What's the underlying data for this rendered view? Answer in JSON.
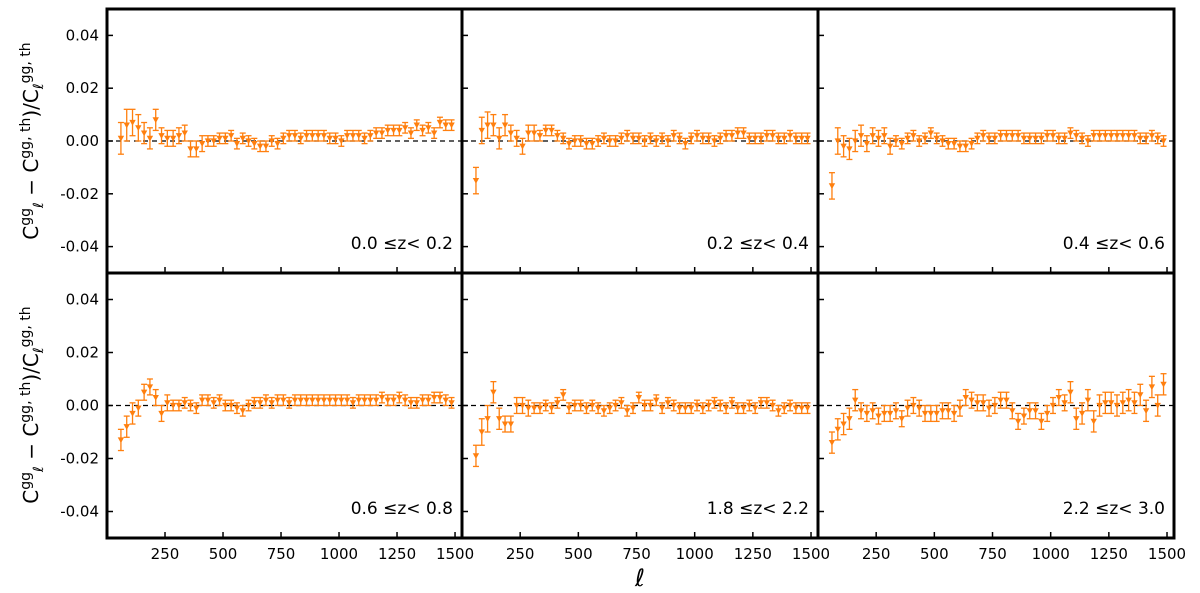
{
  "chart_data": {
    "type": "scatter",
    "layout": "2x3 grid, shared axes",
    "xlabel": "ℓ",
    "ylabel": {
      "part1": "C",
      "sup1": "gg",
      "sub": "ℓ",
      "minus": " − C",
      "sup2": "gg, th",
      "close": ")/C",
      "sub2": "ℓ",
      "sup3": "gg, th"
    },
    "xlim": [
      0,
      1530
    ],
    "ylim": [
      -0.05,
      0.05
    ],
    "x_ticks": [
      250,
      500,
      750,
      1000,
      1250,
      1500
    ],
    "x_tick_labels": [
      "250",
      "500",
      "750",
      "1000",
      "1250",
      "1500"
    ],
    "y_ticks": [
      -0.04,
      -0.02,
      0.0,
      0.02,
      0.04
    ],
    "y_tick_labels": [
      "-0.04",
      "-0.02",
      "0.00",
      "0.02",
      "0.04"
    ],
    "reference_line": {
      "y": 0,
      "style": "dashed",
      "color": "#000000"
    },
    "marker": {
      "shape": "triangle-down",
      "color": "#ff7f0e"
    },
    "x": [
      60,
      85,
      110,
      135,
      160,
      185,
      210,
      235,
      260,
      285,
      310,
      335,
      360,
      385,
      410,
      435,
      460,
      485,
      510,
      535,
      560,
      585,
      610,
      635,
      660,
      685,
      710,
      735,
      760,
      785,
      810,
      835,
      860,
      885,
      910,
      935,
      960,
      985,
      1010,
      1035,
      1060,
      1085,
      1110,
      1135,
      1160,
      1185,
      1210,
      1235,
      1260,
      1285,
      1310,
      1335,
      1360,
      1385,
      1410,
      1435,
      1460,
      1485
    ],
    "panels": [
      {
        "label": "0.0  ≤z<  0.2",
        "y": [
          0.001,
          0.006,
          0.007,
          0.005,
          0.003,
          0.001,
          0.008,
          0.002,
          0.001,
          0.001,
          0.002,
          0.003,
          -0.003,
          -0.003,
          -0.001,
          0.0,
          0.0,
          0.001,
          0.001,
          0.002,
          -0.001,
          0.001,
          0.0,
          -0.001,
          -0.002,
          -0.002,
          0.0,
          -0.001,
          0.001,
          0.002,
          0.002,
          0.001,
          0.002,
          0.002,
          0.002,
          0.002,
          0.001,
          0.001,
          0.0,
          0.002,
          0.002,
          0.002,
          0.001,
          0.002,
          0.003,
          0.003,
          0.004,
          0.004,
          0.004,
          0.005,
          0.003,
          0.006,
          0.004,
          0.005,
          0.003,
          0.007,
          0.006,
          0.006
        ],
        "err": [
          0.006,
          0.006,
          0.005,
          0.005,
          0.004,
          0.004,
          0.004,
          0.003,
          0.003,
          0.003,
          0.003,
          0.003,
          0.003,
          0.003,
          0.003,
          0.002,
          0.002,
          0.002,
          0.002,
          0.002,
          0.002,
          0.002,
          0.002,
          0.002,
          0.002,
          0.002,
          0.002,
          0.002,
          0.002,
          0.002,
          0.002,
          0.002,
          0.002,
          0.002,
          0.002,
          0.002,
          0.002,
          0.002,
          0.002,
          0.002,
          0.002,
          0.002,
          0.002,
          0.002,
          0.002,
          0.002,
          0.002,
          0.002,
          0.002,
          0.002,
          0.002,
          0.002,
          0.002,
          0.002,
          0.002,
          0.002,
          0.002,
          0.002
        ]
      },
      {
        "label": "0.2  ≤z<  0.4",
        "y": [
          -0.015,
          0.004,
          0.006,
          0.006,
          0.001,
          0.006,
          0.003,
          0.001,
          -0.002,
          0.003,
          0.003,
          0.002,
          0.004,
          0.004,
          0.002,
          0.001,
          -0.001,
          0.0,
          0.0,
          -0.001,
          -0.001,
          0.0,
          0.001,
          0.0,
          0.0,
          0.001,
          0.002,
          0.001,
          0.001,
          0.0,
          0.001,
          0.0,
          0.001,
          0.0,
          0.002,
          0.001,
          -0.001,
          0.001,
          0.002,
          0.001,
          0.001,
          0.0,
          0.001,
          0.002,
          0.002,
          0.003,
          0.003,
          0.001,
          0.001,
          0.001,
          0.002,
          0.002,
          0.001,
          0.001,
          0.002,
          0.001,
          0.001,
          0.001
        ],
        "err": [
          0.005,
          0.005,
          0.005,
          0.004,
          0.004,
          0.004,
          0.003,
          0.003,
          0.003,
          0.003,
          0.003,
          0.002,
          0.002,
          0.002,
          0.002,
          0.002,
          0.002,
          0.002,
          0.002,
          0.002,
          0.002,
          0.002,
          0.002,
          0.002,
          0.002,
          0.002,
          0.002,
          0.002,
          0.002,
          0.002,
          0.002,
          0.002,
          0.002,
          0.002,
          0.002,
          0.002,
          0.002,
          0.002,
          0.002,
          0.002,
          0.002,
          0.002,
          0.002,
          0.002,
          0.002,
          0.002,
          0.002,
          0.002,
          0.002,
          0.002,
          0.002,
          0.002,
          0.002,
          0.002,
          0.002,
          0.002,
          0.002,
          0.002
        ]
      },
      {
        "label": "0.4  ≤z<  0.6",
        "y": [
          -0.017,
          0.0,
          -0.002,
          -0.003,
          0.0,
          0.002,
          -0.001,
          0.002,
          0.001,
          0.002,
          -0.002,
          0.0,
          -0.001,
          0.001,
          0.002,
          0.0,
          0.001,
          0.003,
          0.001,
          0.0,
          -0.001,
          -0.001,
          -0.002,
          -0.002,
          -0.001,
          0.001,
          0.002,
          0.001,
          0.001,
          0.002,
          0.002,
          0.002,
          0.002,
          0.001,
          0.001,
          0.001,
          0.001,
          0.002,
          0.002,
          0.001,
          0.001,
          0.003,
          0.002,
          0.001,
          0.0,
          0.002,
          0.002,
          0.002,
          0.002,
          0.002,
          0.002,
          0.002,
          0.002,
          0.001,
          0.001,
          0.002,
          0.001,
          0.0
        ],
        "err": [
          0.005,
          0.005,
          0.004,
          0.004,
          0.004,
          0.004,
          0.003,
          0.003,
          0.003,
          0.003,
          0.003,
          0.002,
          0.002,
          0.002,
          0.002,
          0.002,
          0.002,
          0.002,
          0.002,
          0.002,
          0.002,
          0.002,
          0.002,
          0.002,
          0.002,
          0.002,
          0.002,
          0.002,
          0.002,
          0.002,
          0.002,
          0.002,
          0.002,
          0.002,
          0.002,
          0.002,
          0.002,
          0.002,
          0.002,
          0.002,
          0.002,
          0.002,
          0.002,
          0.002,
          0.002,
          0.002,
          0.002,
          0.002,
          0.002,
          0.002,
          0.002,
          0.002,
          0.002,
          0.002,
          0.002,
          0.002,
          0.002,
          0.002
        ]
      },
      {
        "label": "0.6  ≤z<  0.8",
        "y": [
          -0.013,
          -0.008,
          -0.003,
          -0.001,
          0.005,
          0.007,
          0.003,
          -0.003,
          0.001,
          0.0,
          0.0,
          0.001,
          0.0,
          -0.001,
          0.002,
          0.002,
          0.001,
          0.002,
          0.0,
          0.0,
          -0.001,
          -0.002,
          0.0,
          0.001,
          0.001,
          0.002,
          0.001,
          0.002,
          0.002,
          0.001,
          0.002,
          0.002,
          0.002,
          0.002,
          0.002,
          0.002,
          0.002,
          0.002,
          0.002,
          0.002,
          0.001,
          0.002,
          0.002,
          0.002,
          0.002,
          0.003,
          0.002,
          0.002,
          0.003,
          0.002,
          0.001,
          0.001,
          0.002,
          0.002,
          0.003,
          0.003,
          0.002,
          0.001
        ],
        "err": [
          0.004,
          0.004,
          0.004,
          0.003,
          0.003,
          0.003,
          0.003,
          0.003,
          0.003,
          0.002,
          0.002,
          0.002,
          0.002,
          0.002,
          0.002,
          0.002,
          0.002,
          0.002,
          0.002,
          0.002,
          0.002,
          0.002,
          0.002,
          0.002,
          0.002,
          0.002,
          0.002,
          0.002,
          0.002,
          0.002,
          0.002,
          0.002,
          0.002,
          0.002,
          0.002,
          0.002,
          0.002,
          0.002,
          0.002,
          0.002,
          0.002,
          0.002,
          0.002,
          0.002,
          0.002,
          0.002,
          0.002,
          0.002,
          0.002,
          0.002,
          0.002,
          0.002,
          0.002,
          0.002,
          0.002,
          0.002,
          0.002,
          0.002
        ]
      },
      {
        "label": "1.8  ≤z<  2.2",
        "y": [
          -0.019,
          -0.01,
          -0.005,
          0.005,
          -0.005,
          -0.007,
          -0.007,
          0.0,
          0.0,
          -0.001,
          -0.001,
          -0.001,
          0.0,
          -0.001,
          0.001,
          0.004,
          -0.001,
          0.0,
          0.0,
          -0.001,
          0.0,
          -0.001,
          -0.002,
          -0.001,
          0.0,
          0.001,
          -0.002,
          -0.001,
          0.003,
          0.0,
          0.0,
          0.002,
          -0.001,
          0.001,
          0.0,
          -0.001,
          -0.001,
          -0.001,
          0.0,
          -0.001,
          0.0,
          0.001,
          0.0,
          -0.001,
          0.001,
          -0.001,
          -0.001,
          0.0,
          -0.001,
          0.001,
          0.001,
          0.0,
          -0.002,
          -0.001,
          0.0,
          -0.001,
          -0.001,
          -0.001
        ],
        "err": [
          0.004,
          0.005,
          0.005,
          0.004,
          0.004,
          0.003,
          0.003,
          0.003,
          0.003,
          0.003,
          0.002,
          0.002,
          0.002,
          0.002,
          0.002,
          0.002,
          0.002,
          0.002,
          0.002,
          0.002,
          0.002,
          0.002,
          0.002,
          0.002,
          0.002,
          0.002,
          0.002,
          0.002,
          0.002,
          0.002,
          0.002,
          0.002,
          0.002,
          0.002,
          0.002,
          0.002,
          0.002,
          0.002,
          0.002,
          0.002,
          0.002,
          0.002,
          0.002,
          0.002,
          0.002,
          0.002,
          0.002,
          0.002,
          0.002,
          0.002,
          0.002,
          0.002,
          0.002,
          0.002,
          0.002,
          0.002,
          0.002,
          0.002
        ]
      },
      {
        "label": "2.2  ≤z<  3.0",
        "y": [
          -0.014,
          -0.009,
          -0.007,
          -0.005,
          0.002,
          -0.002,
          -0.003,
          -0.002,
          -0.004,
          -0.003,
          -0.003,
          -0.002,
          -0.005,
          -0.001,
          0.0,
          -0.001,
          -0.003,
          -0.003,
          -0.003,
          -0.002,
          -0.002,
          -0.003,
          -0.001,
          0.003,
          0.002,
          0.001,
          0.001,
          -0.001,
          0.0,
          0.002,
          0.002,
          -0.002,
          -0.006,
          -0.004,
          -0.002,
          -0.002,
          -0.006,
          -0.003,
          0.0,
          0.003,
          0.001,
          0.005,
          -0.005,
          -0.003,
          0.002,
          -0.006,
          0.0,
          0.001,
          0.001,
          0.0,
          0.001,
          0.002,
          0.001,
          0.004,
          -0.002,
          0.007,
          0.0,
          0.008
        ],
        "err": [
          0.004,
          0.004,
          0.004,
          0.004,
          0.004,
          0.003,
          0.003,
          0.003,
          0.003,
          0.003,
          0.003,
          0.003,
          0.003,
          0.003,
          0.003,
          0.003,
          0.003,
          0.003,
          0.003,
          0.003,
          0.003,
          0.003,
          0.003,
          0.003,
          0.003,
          0.003,
          0.003,
          0.003,
          0.003,
          0.003,
          0.003,
          0.003,
          0.003,
          0.003,
          0.003,
          0.003,
          0.003,
          0.003,
          0.003,
          0.003,
          0.003,
          0.004,
          0.004,
          0.004,
          0.004,
          0.004,
          0.004,
          0.004,
          0.004,
          0.004,
          0.004,
          0.004,
          0.004,
          0.004,
          0.004,
          0.004,
          0.004,
          0.004
        ]
      }
    ]
  }
}
